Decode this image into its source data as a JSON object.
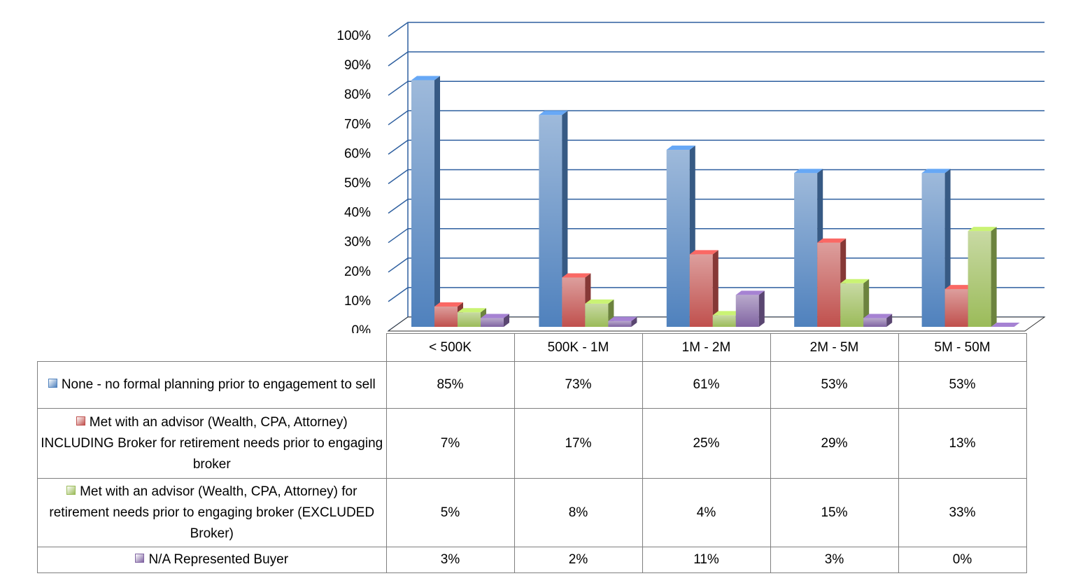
{
  "chart_data": {
    "type": "bar3d",
    "categories": [
      "< 500K",
      "500K - 1M",
      "1M - 2M",
      "2M - 5M",
      "5M - 50M"
    ],
    "series": [
      {
        "name": "None - no formal planning prior to engagement to sell",
        "color": "#4f81bd",
        "values": [
          85,
          73,
          61,
          53,
          53
        ],
        "value_labels": [
          "85%",
          "73%",
          "61%",
          "53%",
          "53%"
        ]
      },
      {
        "name": "Met with an advisor (Wealth, CPA, Attorney) INCLUDING Broker for retirement needs prior to engaging broker",
        "color": "#c0504d",
        "values": [
          7,
          17,
          25,
          29,
          13
        ],
        "value_labels": [
          "7%",
          "17%",
          "25%",
          "29%",
          "13%"
        ]
      },
      {
        "name": "Met with an advisor (Wealth, CPA, Attorney) for retirement needs prior to engaging broker (EXCLUDED Broker)",
        "color": "#9bbb59",
        "values": [
          5,
          8,
          4,
          15,
          33
        ],
        "value_labels": [
          "5%",
          "8%",
          "4%",
          "15%",
          "33%"
        ]
      },
      {
        "name": "N/A  Represented Buyer",
        "color": "#8064a2",
        "values": [
          3,
          2,
          11,
          3,
          0
        ],
        "value_labels": [
          "3%",
          "2%",
          "11%",
          "3%",
          "0%"
        ]
      }
    ],
    "ylim": [
      0,
      100
    ],
    "yticks": [
      {
        "value": 0,
        "label": "0%"
      },
      {
        "value": 10,
        "label": "10%"
      },
      {
        "value": 20,
        "label": "20%"
      },
      {
        "value": 30,
        "label": "30%"
      },
      {
        "value": 40,
        "label": "40%"
      },
      {
        "value": 50,
        "label": "50%"
      },
      {
        "value": 60,
        "label": "60%"
      },
      {
        "value": 70,
        "label": "70%"
      },
      {
        "value": 80,
        "label": "80%"
      },
      {
        "value": 90,
        "label": "90%"
      },
      {
        "value": 100,
        "label": "100%"
      }
    ],
    "grid": true
  }
}
